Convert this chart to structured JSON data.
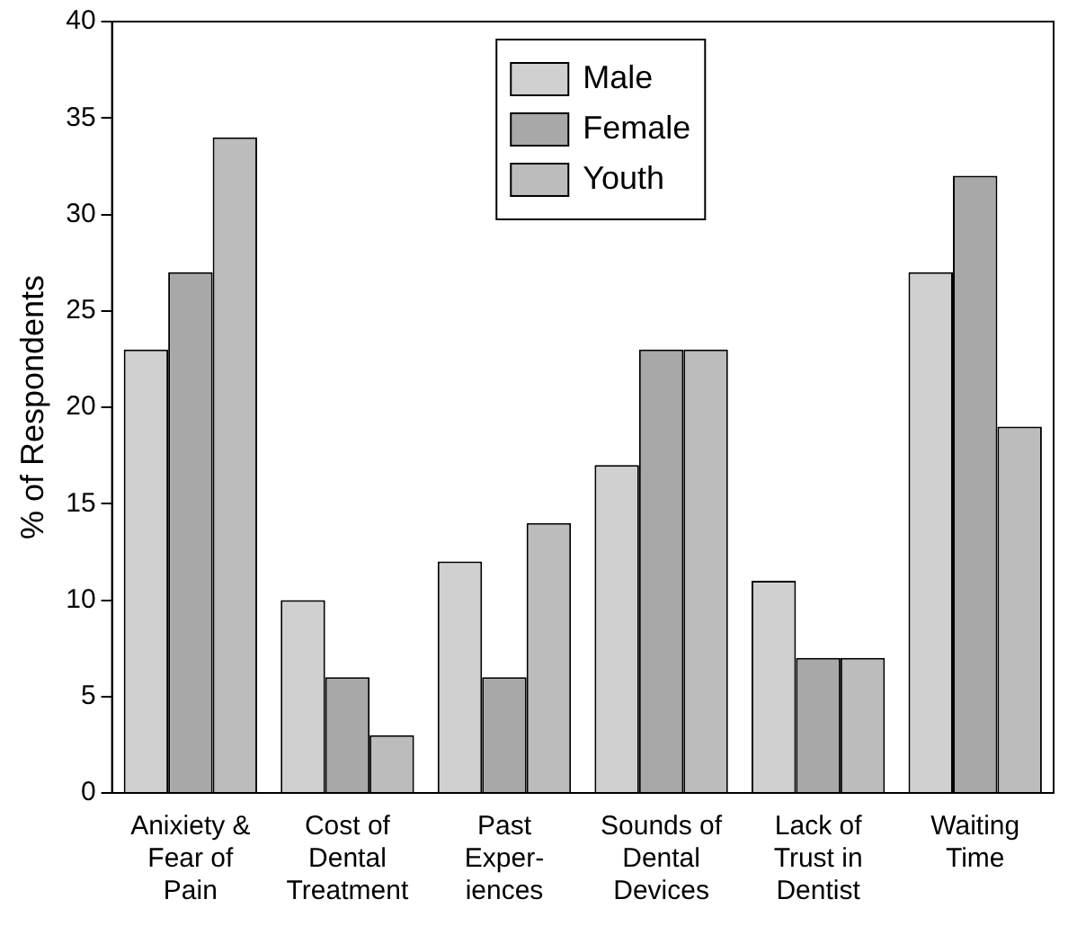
{
  "chart_data": {
    "type": "bar",
    "ylabel": "% of Respondents",
    "categories": [
      "Anixiety &\nFear of\nPain",
      "Cost of\nDental\nTreatment",
      "Past\nExper-\niences",
      "Sounds of\nDental\nDevices",
      "Lack of\nTrust in\nDentist",
      "Waiting\nTime"
    ],
    "series": [
      {
        "name": "Male",
        "color": "#d0d0d0",
        "values": [
          23,
          10,
          12,
          17,
          11,
          27
        ]
      },
      {
        "name": "Female",
        "color": "#a8a8a8",
        "values": [
          27,
          6,
          6,
          23,
          7,
          32
        ]
      },
      {
        "name": "Youth",
        "color": "#bcbcbc",
        "values": [
          34,
          3,
          14,
          23,
          7,
          19
        ]
      }
    ],
    "ylim": [
      0,
      40
    ],
    "yticks": [
      0,
      5,
      10,
      15,
      20,
      25,
      30,
      35,
      40
    ],
    "grid": false,
    "legend": "top"
  }
}
